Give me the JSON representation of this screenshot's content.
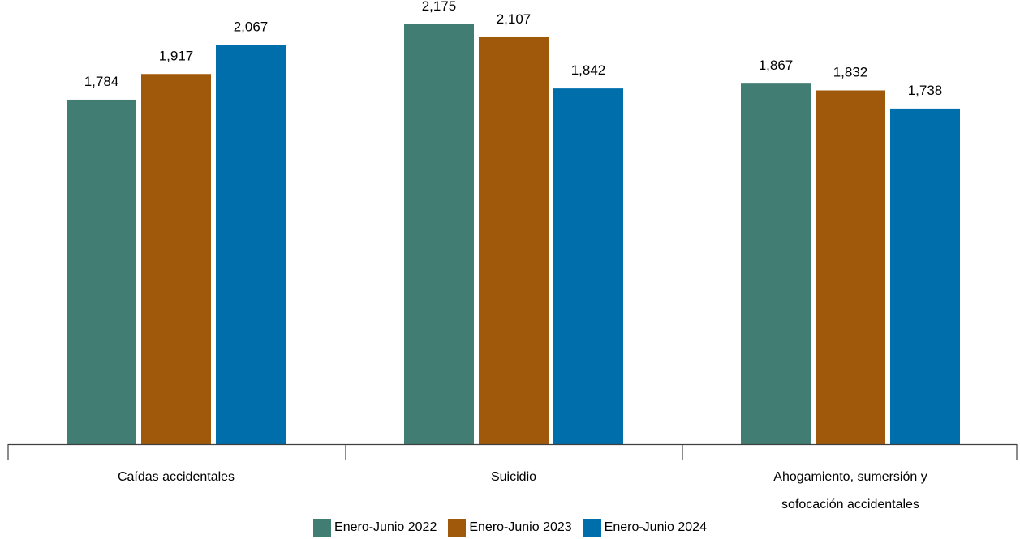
{
  "chart_data": {
    "type": "bar",
    "title": "",
    "xlabel": "",
    "ylabel": "",
    "ylim": [
      0,
      2300
    ],
    "grid": false,
    "legend_position": "bottom",
    "categories": [
      [
        "Caídas accidentales"
      ],
      [
        "Suicidio"
      ],
      [
        "Ahogamiento, sumersión y",
        "sofocación accidentales"
      ]
    ],
    "series": [
      {
        "name": "Enero-Junio 2022",
        "color": "#417d72",
        "values": [
          1784,
          2175,
          1867
        ],
        "labels": [
          "1,784",
          "2,175",
          "1,867"
        ]
      },
      {
        "name": "Enero-Junio 2023",
        "color": "#a0580a",
        "values": [
          1917,
          2107,
          1832
        ],
        "labels": [
          "1,917",
          "2,107",
          "1,832"
        ]
      },
      {
        "name": "Enero-Junio 2024",
        "color": "#006eab",
        "values": [
          2067,
          1842,
          1738
        ],
        "labels": [
          "2,067",
          "1,842",
          "1,738"
        ]
      }
    ]
  }
}
